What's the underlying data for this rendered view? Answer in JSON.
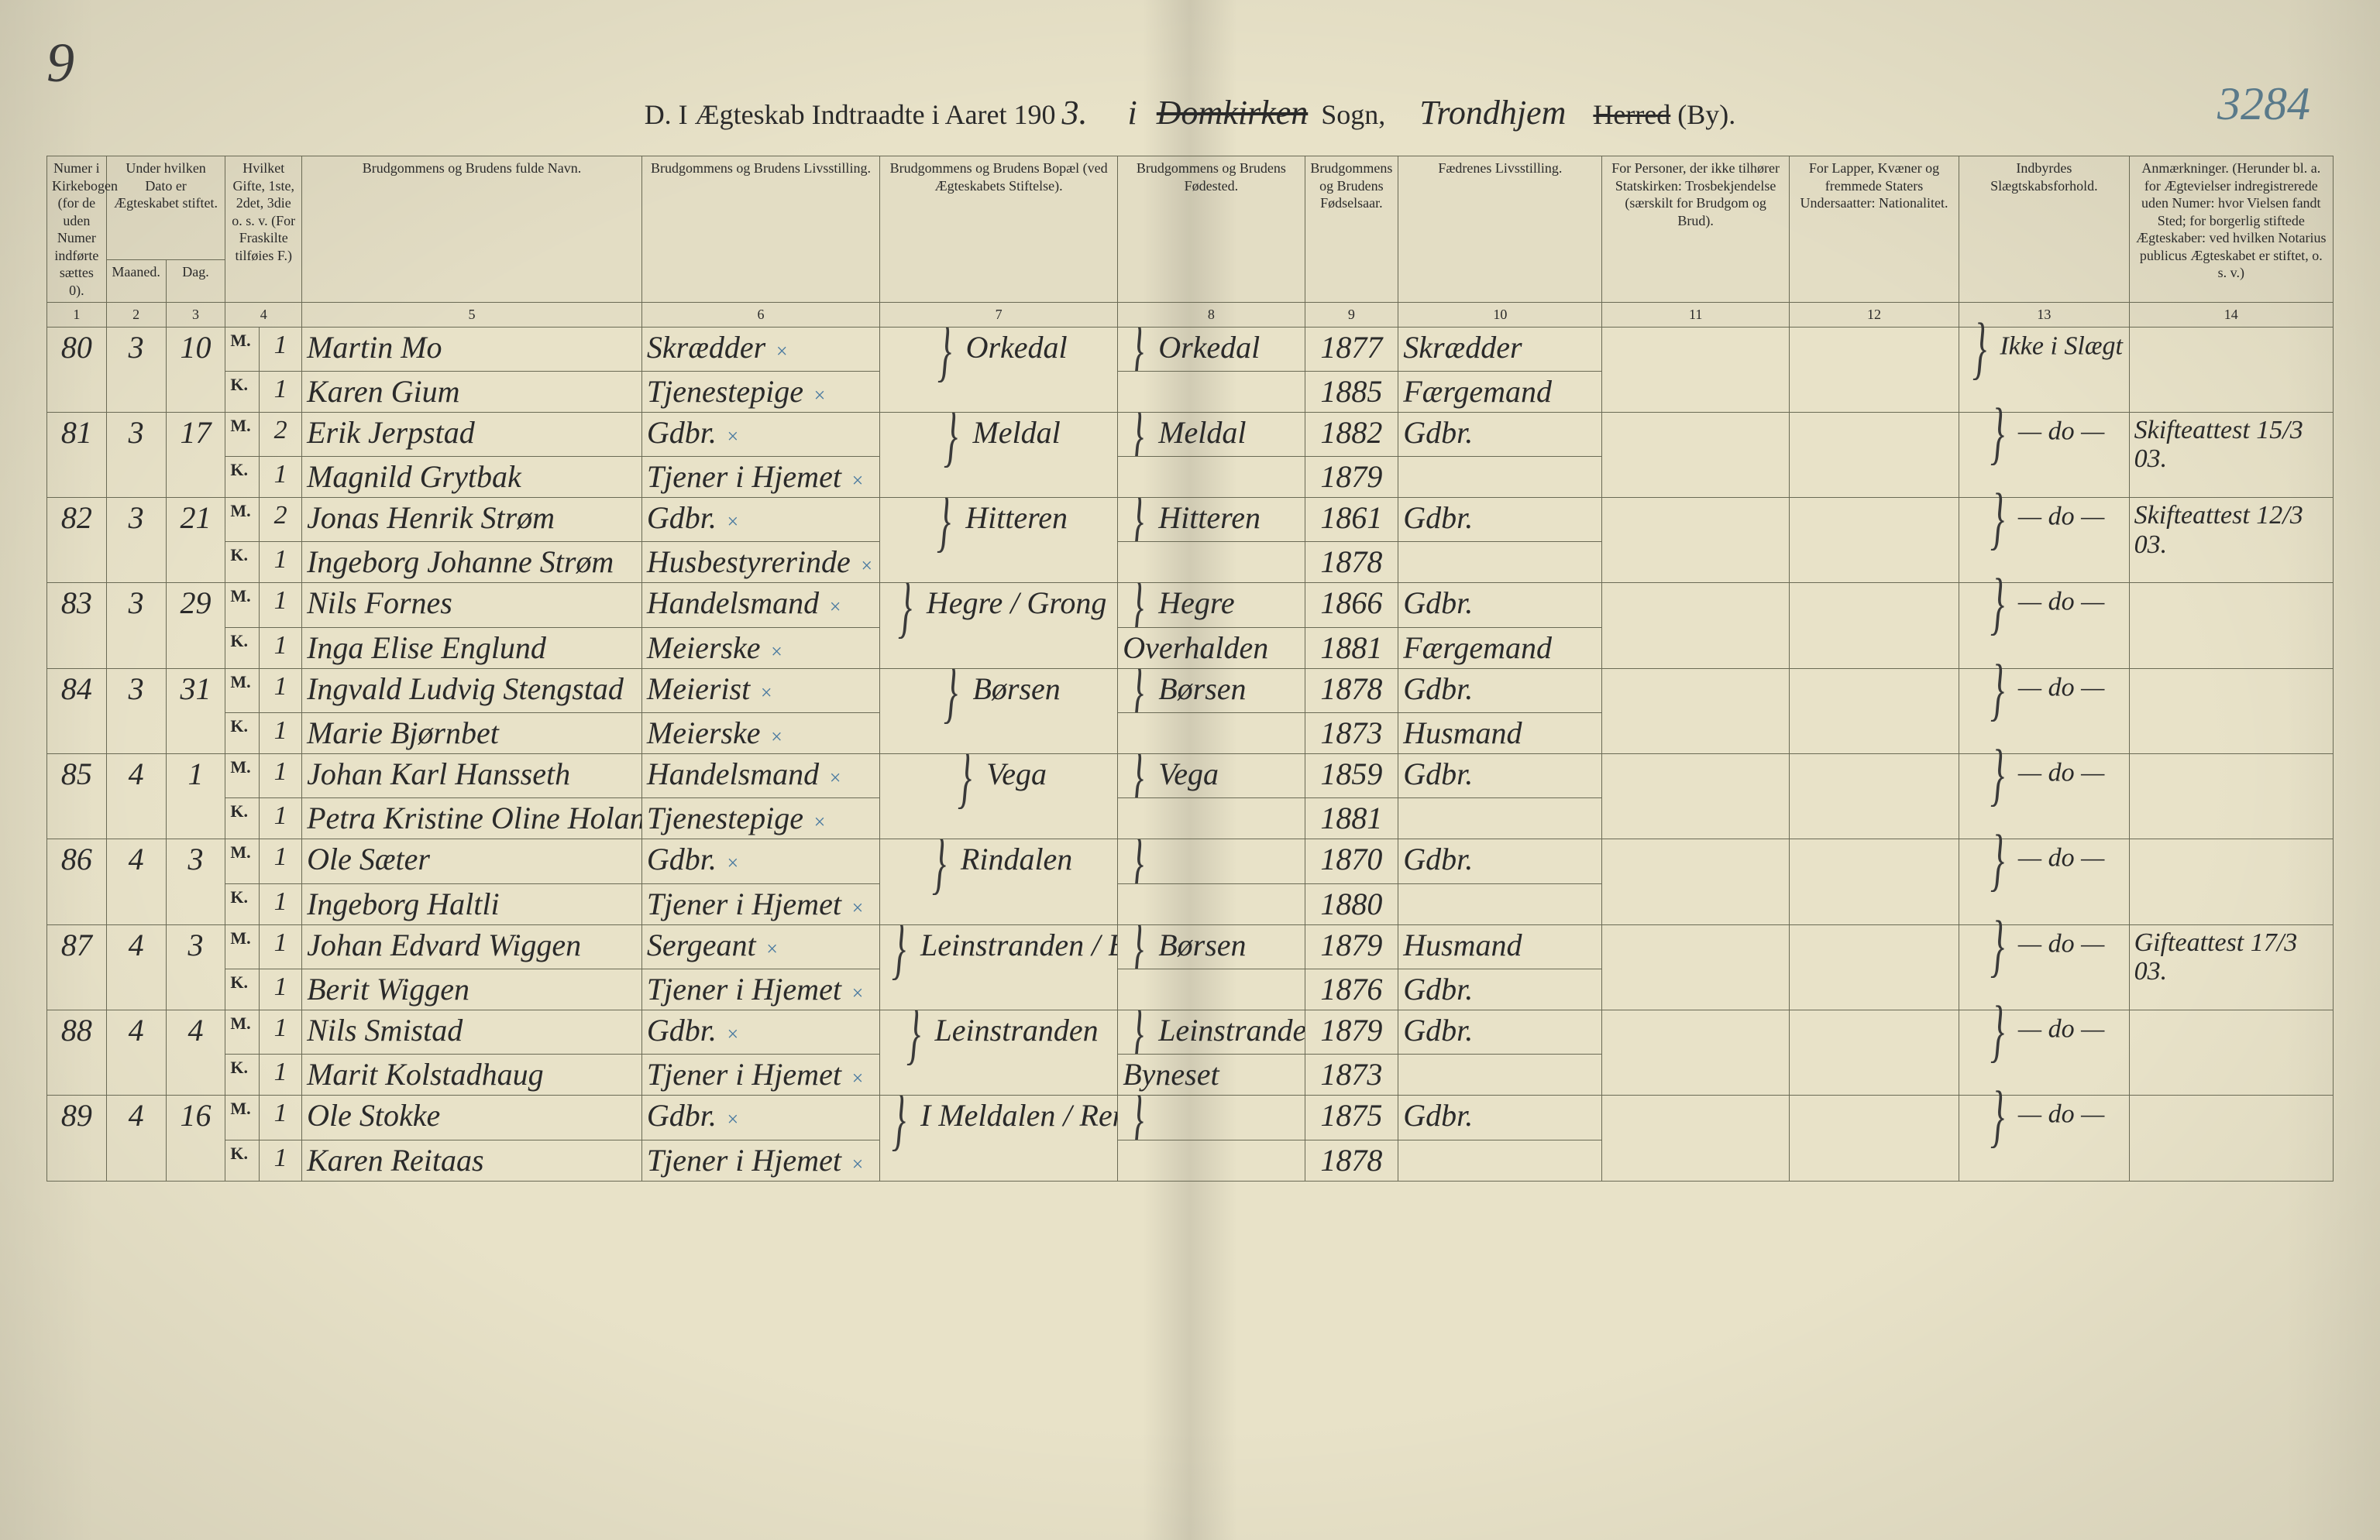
{
  "page_corner_number": "9",
  "right_margin_number": "3284",
  "title": {
    "prefix": "D.  I Ægteskab Indtraadte i Aaret 190",
    "year_suffix": "3.",
    "i": "i",
    "sogn_hand": "Domkirken",
    "sogn_label": "Sogn,",
    "by_hand": "Trondhjem",
    "herred_strike": "Herred",
    "by_label": "(By)."
  },
  "headers": {
    "c1": "Numer i Kirkebogen (for de uden Numer indførte sættes 0).",
    "c2_top": "Under hvilken Dato er Ægteskabet stiftet.",
    "c2a": "Maaned.",
    "c2b": "Dag.",
    "c4": "Hvilket Gifte, 1ste, 2det, 3die o. s. v. (For Fraskilte tilføies F.)",
    "c5": "Brudgommens og Brudens fulde Navn.",
    "c6": "Brudgommens og Brudens Livsstilling.",
    "c7": "Brudgommens og Brudens Bopæl (ved Ægteskabets Stiftelse).",
    "c8": "Brudgommens og Brudens Fødested.",
    "c9": "Brudgommens og Brudens Fødselsaar.",
    "c10": "Fædrenes Livsstilling.",
    "c11": "For Personer, der ikke tilhører Statskirken: Trosbekjendelse (særskilt for Brudgom og Brud).",
    "c12": "For Lapper, Kvæner og fremmede Staters Undersaatter: Nationalitet.",
    "c13": "Indbyrdes Slægtskabsforhold.",
    "c14": "Anmærkninger. (Herunder bl. a. for Ægtevielser indregistrerede uden Numer: hvor Vielsen fandt Sted; for borgerlig stiftede Ægteskaber: ved hvilken Notarius publicus Ægteskabet er stiftet, o. s. v.)"
  },
  "colnums": [
    "1",
    "2",
    "3",
    "4",
    "5",
    "6",
    "7",
    "8",
    "9",
    "10",
    "11",
    "12",
    "13",
    "14"
  ],
  "entries": [
    {
      "num": "80",
      "month": "3",
      "day": "10",
      "groom": {
        "mk": "M.",
        "gifte": "1",
        "name": "Martin Mo",
        "stilling": "Skrædder",
        "fodested": "Orkedal",
        "aar": "1877",
        "far": "Skrædder"
      },
      "bride": {
        "mk": "K.",
        "gifte": "1",
        "name": "Karen Gium",
        "stilling": "Tjenestepige",
        "fodested": "",
        "aar": "1885",
        "far": "Færgemand"
      },
      "bopael": "Orkedal",
      "c13": "Ikke i Slægt",
      "c14": ""
    },
    {
      "num": "81",
      "month": "3",
      "day": "17",
      "groom": {
        "mk": "M.",
        "gifte": "2",
        "name": "Erik Jerpstad",
        "stilling": "Gdbr.",
        "fodested": "Meldal",
        "aar": "1882",
        "far": "Gdbr."
      },
      "bride": {
        "mk": "K.",
        "gifte": "1",
        "name": "Magnild Grytbak",
        "stilling": "Tjener i Hjemet",
        "fodested": "",
        "aar": "1879",
        "far": ""
      },
      "bopael": "Meldal",
      "c13": "— do —",
      "c14": "Skifteattest 15/3 03."
    },
    {
      "num": "82",
      "month": "3",
      "day": "21",
      "groom": {
        "mk": "M.",
        "gifte": "2",
        "name": "Jonas Henrik Strøm",
        "stilling": "Gdbr.",
        "fodested": "Hitteren",
        "aar": "1861",
        "far": "Gdbr."
      },
      "bride": {
        "mk": "K.",
        "gifte": "1",
        "name": "Ingeborg Johanne Strøm",
        "stilling": "Husbestyrerinde",
        "fodested": "",
        "aar": "1878",
        "far": ""
      },
      "bopael": "Hitteren",
      "c13": "— do —",
      "c14": "Skifteattest 12/3 03."
    },
    {
      "num": "83",
      "month": "3",
      "day": "29",
      "groom": {
        "mk": "M.",
        "gifte": "1",
        "name": "Nils Fornes",
        "stilling": "Handelsmand",
        "fodested": "Hegre",
        "aar": "1866",
        "far": "Gdbr."
      },
      "bride": {
        "mk": "K.",
        "gifte": "1",
        "name": "Inga Elise Englund",
        "stilling": "Meierske",
        "fodested": "Overhalden",
        "aar": "1881",
        "far": "Færgemand"
      },
      "bopael": "Hegre / Grong",
      "c13": "— do —",
      "c14": ""
    },
    {
      "num": "84",
      "month": "3",
      "day": "31",
      "groom": {
        "mk": "M.",
        "gifte": "1",
        "name": "Ingvald Ludvig Stengstad",
        "stilling": "Meierist",
        "fodested": "Børsen",
        "aar": "1878",
        "far": "Gdbr."
      },
      "bride": {
        "mk": "K.",
        "gifte": "1",
        "name": "Marie Bjørnbet",
        "stilling": "Meierske",
        "fodested": "",
        "aar": "1873",
        "far": "Husmand"
      },
      "bopael": "Børsen",
      "c13": "— do —",
      "c14": ""
    },
    {
      "num": "85",
      "month": "4",
      "day": "1",
      "groom": {
        "mk": "M.",
        "gifte": "1",
        "name": "Johan Karl Hansseth",
        "stilling": "Handelsmand",
        "fodested": "Vega",
        "aar": "1859",
        "far": "Gdbr."
      },
      "bride": {
        "mk": "K.",
        "gifte": "1",
        "name": "Petra Kristine Oline Holan",
        "stilling": "Tjenestepige",
        "fodested": "",
        "aar": "1881",
        "far": ""
      },
      "bopael": "Vega",
      "c13": "— do —",
      "c14": ""
    },
    {
      "num": "86",
      "month": "4",
      "day": "3",
      "groom": {
        "mk": "M.",
        "gifte": "1",
        "name": "Ole Sæter",
        "stilling": "Gdbr.",
        "fodested": "",
        "aar": "1870",
        "far": "Gdbr."
      },
      "bride": {
        "mk": "K.",
        "gifte": "1",
        "name": "Ingeborg Haltli",
        "stilling": "Tjener i Hjemet",
        "fodested": "",
        "aar": "1880",
        "far": ""
      },
      "bopael": "Rindalen",
      "c13": "— do —",
      "c14": ""
    },
    {
      "num": "87",
      "month": "4",
      "day": "3",
      "groom": {
        "mk": "M.",
        "gifte": "1",
        "name": "Johan Edvard Wiggen",
        "stilling": "Sergeant",
        "fodested": "Børsen",
        "aar": "1879",
        "far": "Husmand"
      },
      "bride": {
        "mk": "K.",
        "gifte": "1",
        "name": "Berit Wiggen",
        "stilling": "Tjener i Hjemet",
        "fodested": "",
        "aar": "1876",
        "far": "Gdbr."
      },
      "bopael": "Leinstranden / Børsen",
      "c13": "— do —",
      "c14": "Gifteattest 17/3 03."
    },
    {
      "num": "88",
      "month": "4",
      "day": "4",
      "groom": {
        "mk": "M.",
        "gifte": "1",
        "name": "Nils Smistad",
        "stilling": "Gdbr.",
        "fodested": "Leinstranden",
        "aar": "1879",
        "far": "Gdbr."
      },
      "bride": {
        "mk": "K.",
        "gifte": "1",
        "name": "Marit Kolstadhaug",
        "stilling": "Tjener i Hjemet",
        "fodested": "Byneset",
        "aar": "1873",
        "far": ""
      },
      "bopael": "Leinstranden",
      "c13": "— do —",
      "c14": ""
    },
    {
      "num": "89",
      "month": "4",
      "day": "16",
      "groom": {
        "mk": "M.",
        "gifte": "1",
        "name": "Ole Stokke",
        "stilling": "Gdbr.",
        "fodested": "",
        "aar": "1875",
        "far": "Gdbr."
      },
      "bride": {
        "mk": "K.",
        "gifte": "1",
        "name": "Karen Reitaas",
        "stilling": "Tjener i Hjemet",
        "fodested": "",
        "aar": "1878",
        "far": ""
      },
      "bopael": "I Meldalen / Rennebu",
      "c13": "— do —",
      "c14": ""
    }
  ]
}
